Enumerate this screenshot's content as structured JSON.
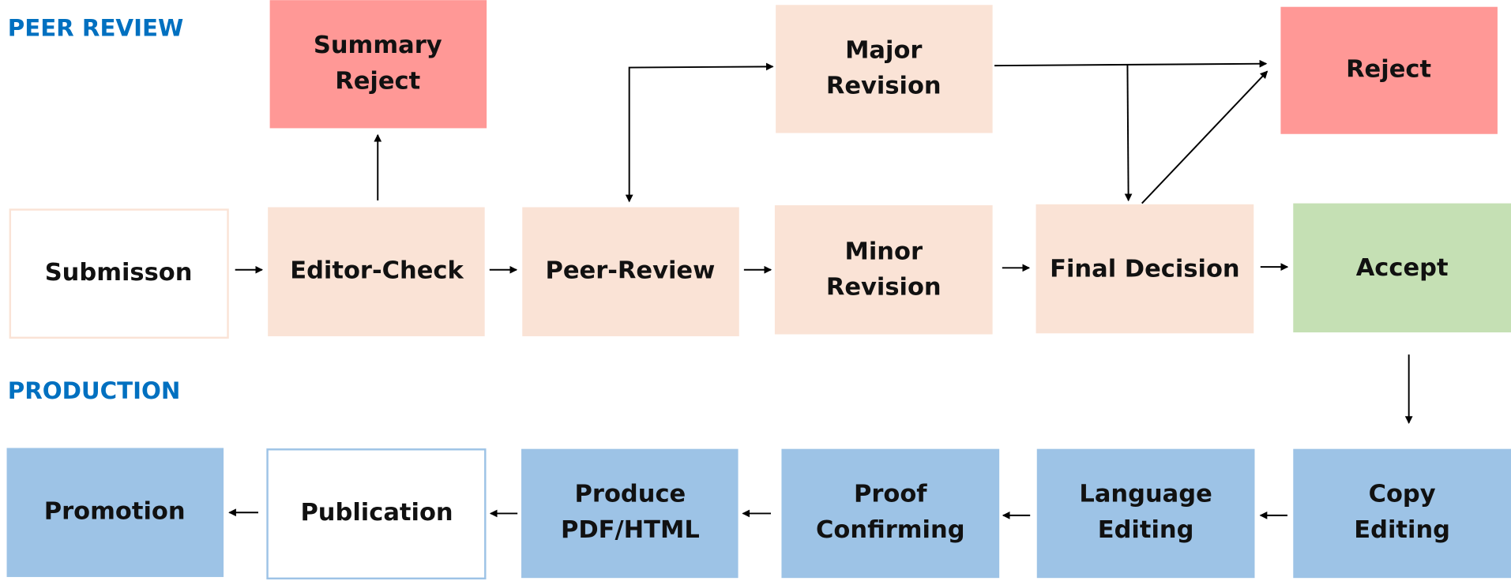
{
  "sections": {
    "peer_review": "PEER REVIEW",
    "production": "PRODUCTION"
  },
  "colors": {
    "section": "#0070C0",
    "reject": "#FF9896",
    "process": "#FAE3D6",
    "accept": "#C5E0B4",
    "production": "#9DC3E6",
    "white": "#FFFFFF"
  },
  "nodes": {
    "summary_reject": [
      "Summary",
      "Reject"
    ],
    "major_revision": [
      "Major",
      "Revision"
    ],
    "reject": [
      "Reject"
    ],
    "submission": [
      "Submisson"
    ],
    "editor_check": [
      "Editor-Check"
    ],
    "peer_review": [
      "Peer-Review"
    ],
    "minor_revision": [
      "Minor",
      "Revision"
    ],
    "final_decision": [
      "Final Decision"
    ],
    "accept": [
      "Accept"
    ],
    "promotion": [
      "Promotion"
    ],
    "publication": [
      "Publication"
    ],
    "produce": [
      "Produce",
      "PDF/HTML"
    ],
    "proof": [
      "Proof",
      "Confirming"
    ],
    "language": [
      "Language",
      "Editing"
    ],
    "copy": [
      "Copy",
      "Editing"
    ]
  }
}
